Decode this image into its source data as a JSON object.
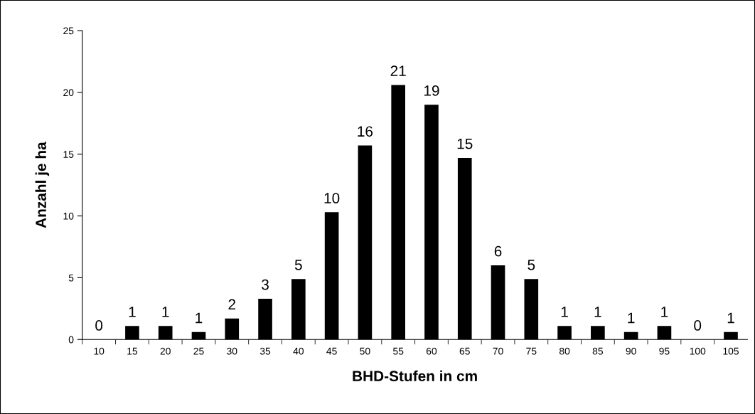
{
  "chart_data": {
    "type": "bar",
    "xlabel": "BHD-Stufen in cm",
    "ylabel": "Anzahl je ha",
    "categories": [
      "10",
      "15",
      "20",
      "25",
      "30",
      "35",
      "40",
      "45",
      "50",
      "55",
      "60",
      "65",
      "70",
      "75",
      "80",
      "85",
      "90",
      "95",
      "100",
      "105"
    ],
    "values": [
      0,
      1.1,
      1.1,
      0.6,
      1.7,
      3.3,
      4.9,
      10.3,
      15.7,
      20.6,
      19.0,
      14.7,
      6.0,
      4.9,
      1.1,
      1.1,
      0.6,
      1.1,
      0,
      0.6
    ],
    "value_labels": [
      "0",
      "1",
      "1",
      "1",
      "2",
      "3",
      "5",
      "10",
      "16",
      "21",
      "19",
      "15",
      "6",
      "5",
      "1",
      "1",
      "1",
      "1",
      "0",
      "1"
    ],
    "color": "#000000",
    "ylim": [
      0,
      25
    ],
    "yticks": [
      0,
      5,
      10,
      15,
      20,
      25
    ],
    "grid": false,
    "legend": false
  }
}
